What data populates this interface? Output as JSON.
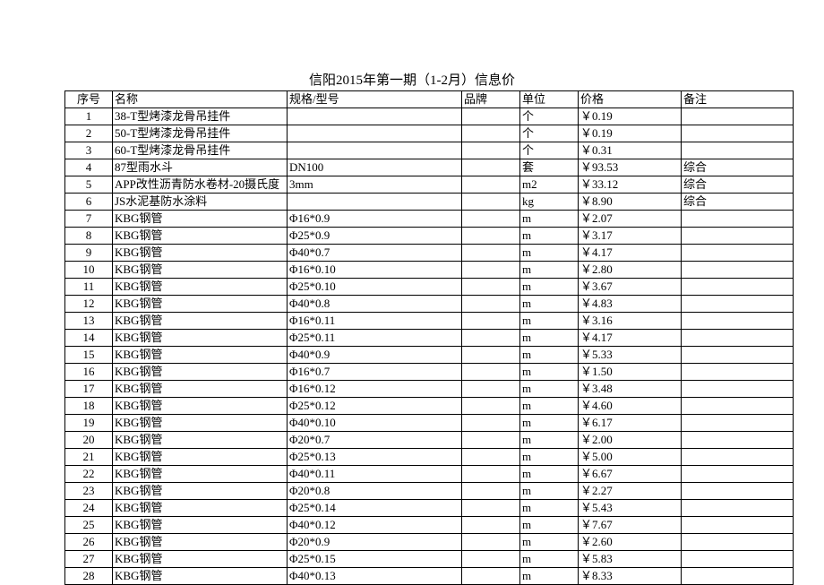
{
  "title": "信阳2015年第一期（1-2月）信息价",
  "table": {
    "columns": [
      "序号",
      "名称",
      "规格/型号",
      "品牌",
      "单位",
      "价格",
      "备注"
    ],
    "rows": [
      [
        "1",
        "38-T型烤漆龙骨吊挂件",
        "",
        "",
        "个",
        "￥0.19",
        ""
      ],
      [
        "2",
        "50-T型烤漆龙骨吊挂件",
        "",
        "",
        "个",
        "￥0.19",
        ""
      ],
      [
        "3",
        "60-T型烤漆龙骨吊挂件",
        "",
        "",
        "个",
        "￥0.31",
        ""
      ],
      [
        "4",
        "87型雨水斗",
        "DN100",
        "",
        "套",
        "￥93.53",
        "综合"
      ],
      [
        "5",
        "APP改性沥青防水卷材-20摄氏度",
        "3mm",
        "",
        "m2",
        "￥33.12",
        "综合"
      ],
      [
        "6",
        "JS水泥基防水涂料",
        "",
        "",
        "kg",
        "￥8.90",
        "综合"
      ],
      [
        "7",
        "KBG钢管",
        "Φ16*0.9",
        "",
        "m",
        "￥2.07",
        ""
      ],
      [
        "8",
        "KBG钢管",
        "Φ25*0.9",
        "",
        "m",
        "￥3.17",
        ""
      ],
      [
        "9",
        "KBG钢管",
        "Φ40*0.7",
        "",
        "m",
        "￥4.17",
        ""
      ],
      [
        "10",
        "KBG钢管",
        "Φ16*0.10",
        "",
        "m",
        "￥2.80",
        ""
      ],
      [
        "11",
        "KBG钢管",
        "Φ25*0.10",
        "",
        "m",
        "￥3.67",
        ""
      ],
      [
        "12",
        "KBG钢管",
        "Φ40*0.8",
        "",
        "m",
        "￥4.83",
        ""
      ],
      [
        "13",
        "KBG钢管",
        "Φ16*0.11",
        "",
        "m",
        "￥3.16",
        ""
      ],
      [
        "14",
        "KBG钢管",
        "Φ25*0.11",
        "",
        "m",
        "￥4.17",
        ""
      ],
      [
        "15",
        "KBG钢管",
        "Φ40*0.9",
        "",
        "m",
        "￥5.33",
        ""
      ],
      [
        "16",
        "KBG钢管",
        "Φ16*0.7",
        "",
        "m",
        "￥1.50",
        ""
      ],
      [
        "17",
        "KBG钢管",
        "Φ16*0.12",
        "",
        "m",
        "￥3.48",
        ""
      ],
      [
        "18",
        "KBG钢管",
        "Φ25*0.12",
        "",
        "m",
        "￥4.60",
        ""
      ],
      [
        "19",
        "KBG钢管",
        "Φ40*0.10",
        "",
        "m",
        "￥6.17",
        ""
      ],
      [
        "20",
        "KBG钢管",
        "Φ20*0.7",
        "",
        "m",
        "￥2.00",
        ""
      ],
      [
        "21",
        "KBG钢管",
        "Φ25*0.13",
        "",
        "m",
        "￥5.00",
        ""
      ],
      [
        "22",
        "KBG钢管",
        "Φ40*0.11",
        "",
        "m",
        "￥6.67",
        ""
      ],
      [
        "23",
        "KBG钢管",
        "Φ20*0.8",
        "",
        "m",
        "￥2.27",
        ""
      ],
      [
        "24",
        "KBG钢管",
        "Φ25*0.14",
        "",
        "m",
        "￥5.43",
        ""
      ],
      [
        "25",
        "KBG钢管",
        "Φ40*0.12",
        "",
        "m",
        "￥7.67",
        ""
      ],
      [
        "26",
        "KBG钢管",
        "Φ20*0.9",
        "",
        "m",
        "￥2.60",
        ""
      ],
      [
        "27",
        "KBG钢管",
        "Φ25*0.15",
        "",
        "m",
        "￥5.83",
        ""
      ],
      [
        "28",
        "KBG钢管",
        "Φ40*0.13",
        "",
        "m",
        "￥8.33",
        ""
      ]
    ]
  }
}
